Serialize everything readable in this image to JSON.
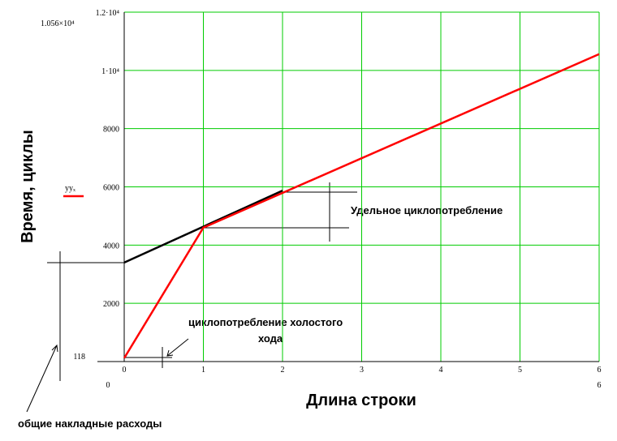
{
  "chart_data": {
    "type": "line",
    "x_label": "Длина строки",
    "y_label": "Время, циклы",
    "series": [
      {
        "name": "yyₓ",
        "color": "#ff0000",
        "x": [
          0,
          1,
          6
        ],
        "values": [
          118,
          4600,
          10560
        ]
      },
      {
        "color": "#000000",
        "x": [
          0,
          2
        ],
        "values": [
          3400,
          5870
        ]
      }
    ],
    "xlim": [
      0,
      6
    ],
    "ylim": [
      0,
      12000
    ],
    "xticks": [
      0,
      1,
      2,
      3,
      4,
      5,
      6
    ],
    "yticks": [
      2000,
      4000,
      6000,
      8000,
      {
        "value": 10000,
        "label": "1·10⁴"
      },
      {
        "value": 12000,
        "label": "1.2·10⁴"
      }
    ],
    "grid": true,
    "grid_color": "#00cc00",
    "y_markers": [
      {
        "value": 118,
        "label": "118"
      },
      {
        "value": 10560,
        "label": "1.056×10⁴"
      }
    ],
    "x_limit_labels": [
      "0",
      "6"
    ],
    "annotations": [
      "Удельное циклопотребление",
      "циклопотребление холостого",
      "хода",
      "общие накладные расходы"
    ]
  }
}
